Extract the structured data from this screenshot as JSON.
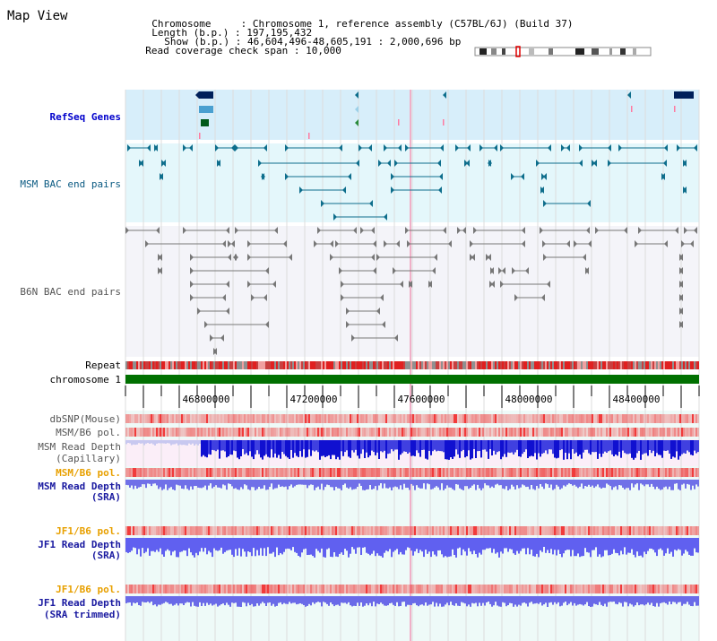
{
  "header": {
    "title": "Map View",
    "chromosome_label": "Chromosome",
    "chromosome_value": "Chromosome 1, reference assembly (C57BL/6J) (Build 37)",
    "length_label": "Length (b.p.)",
    "length_value": "197,195,432",
    "show_label": "Show (b.p.)",
    "show_value": "46,604,496-48,605,191 : 2,000,696 bp",
    "coverage_label": "Read coverage check span",
    "coverage_value": "10,000"
  },
  "tracks": {
    "refseq": "RefSeq Genes",
    "msm_bac": "MSM BAC end pairs",
    "b6n_bac": "B6N BAC end pairs",
    "repeat": "Repeat",
    "chromosome": "chromosome 1",
    "dbsnp": "dbSNP(Mouse)",
    "msm_b6_pol_1": "MSM/B6 pol.",
    "msm_read_depth_cap_1": "MSM Read Depth",
    "msm_read_depth_cap_2": "(Capillary)",
    "msm_b6_pol_2": "MSM/B6 pol.",
    "msm_read_depth_sra_1": "MSM Read Depth",
    "msm_read_depth_sra_2": "(SRA)",
    "jf1_b6_pol_1": "JF1/B6 pol.",
    "jf1_read_depth_sra_1": "JF1 Read Depth",
    "jf1_read_depth_sra_2": "(SRA)",
    "jf1_b6_pol_2": "JF1/B6 pol.",
    "jf1_read_depth_trim_1": "JF1 Read Depth",
    "jf1_read_depth_trim_2": "(SRA trimmed)"
  },
  "axis": {
    "ticks": [
      "46800000",
      "47200000",
      "47600000",
      "48000000",
      "48400000"
    ]
  },
  "colors": {
    "refseq_bg": "#d7eefa",
    "msm_bac_bg": "#e4f7fb",
    "b6n_bg": "#f4f4f9",
    "chromosome_bar": "#007000",
    "msm_feature": "#0e6e8c",
    "b6n_feature": "#777777",
    "pol_red": "#f03030",
    "depth_blue": "#5050e8"
  }
}
